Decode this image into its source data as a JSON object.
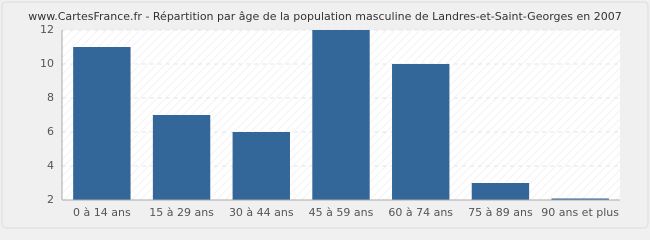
{
  "chart_data": {
    "type": "bar",
    "title": "www.CartesFrance.fr - Répartition par âge de la population masculine de Landres-et-Saint-Georges en 2007",
    "categories": [
      "0 à 14 ans",
      "15 à 29 ans",
      "30 à 44 ans",
      "45 à 59 ans",
      "60 à 74 ans",
      "75 à 89 ans",
      "90 ans et plus"
    ],
    "values": [
      11,
      7,
      6,
      12,
      10,
      3,
      2
    ],
    "color": "#336699",
    "ylim": [
      2,
      12
    ],
    "yticks": [
      2,
      4,
      6,
      8,
      10,
      12
    ],
    "grid": true
  }
}
